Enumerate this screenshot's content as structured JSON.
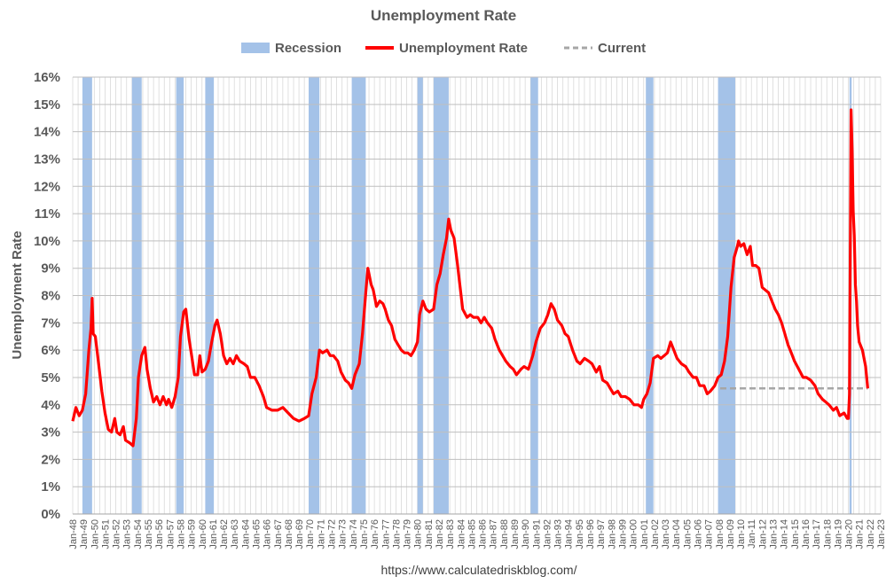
{
  "chart_data": {
    "type": "line",
    "title": "Unemployment Rate",
    "ylabel": "Unemployment Rate",
    "xlabel": "",
    "ylim": [
      0,
      16
    ],
    "xlim": [
      1948.0,
      2023.0
    ],
    "y_ticks": [
      "0%",
      "1%",
      "2%",
      "3%",
      "4%",
      "5%",
      "6%",
      "7%",
      "8%",
      "9%",
      "10%",
      "11%",
      "12%",
      "13%",
      "14%",
      "15%",
      "16%"
    ],
    "x_ticks": [
      "Jan-48",
      "Jan-49",
      "Jan-50",
      "Jan-51",
      "Jan-52",
      "Jan-53",
      "Jan-54",
      "Jan-55",
      "Jan-56",
      "Jan-57",
      "Jan-58",
      "Jan-59",
      "Jan-60",
      "Jan-61",
      "Jan-62",
      "Jan-63",
      "Jan-64",
      "Jan-65",
      "Jan-66",
      "Jan-67",
      "Jan-68",
      "Jan-69",
      "Jan-70",
      "Jan-71",
      "Jan-72",
      "Jan-73",
      "Jan-74",
      "Jan-75",
      "Jan-76",
      "Jan-77",
      "Jan-78",
      "Jan-79",
      "Jan-80",
      "Jan-81",
      "Jan-82",
      "Jan-83",
      "Jan-84",
      "Jan-85",
      "Jan-86",
      "Jan-87",
      "Jan-88",
      "Jan-89",
      "Jan-90",
      "Jan-91",
      "Jan-92",
      "Jan-93",
      "Jan-94",
      "Jan-95",
      "Jan-96",
      "Jan-97",
      "Jan-98",
      "Jan-99",
      "Jan-00",
      "Jan-01",
      "Jan-02",
      "Jan-03",
      "Jan-04",
      "Jan-05",
      "Jan-06",
      "Jan-07",
      "Jan-08",
      "Jan-09",
      "Jan-10",
      "Jan-11",
      "Jan-12",
      "Jan-13",
      "Jan-14",
      "Jan-15",
      "Jan-16",
      "Jan-17",
      "Jan-18",
      "Jan-19",
      "Jan-20",
      "Jan-21",
      "Jan-22",
      "Jan-23"
    ],
    "grid": true,
    "legend": {
      "placement": "top",
      "entries": [
        {
          "label": "Recession",
          "style": "bar",
          "color": "#a4c2e8"
        },
        {
          "label": "Unemployment Rate",
          "style": "line",
          "color": "#ff0000"
        },
        {
          "label": "Current",
          "style": "dashed",
          "color": "#a6a6a6"
        }
      ]
    },
    "recessions": [
      [
        1948.9,
        1949.8
      ],
      [
        1953.5,
        1954.4
      ],
      [
        1957.6,
        1958.3
      ],
      [
        1960.3,
        1961.1
      ],
      [
        1969.9,
        1970.9
      ],
      [
        1973.9,
        1975.2
      ],
      [
        1980.0,
        1980.5
      ],
      [
        1981.5,
        1982.9
      ],
      [
        1990.5,
        1991.2
      ],
      [
        2001.2,
        2001.9
      ],
      [
        2007.9,
        2009.5
      ],
      [
        2020.1,
        2020.3
      ]
    ],
    "current": {
      "value": 4.6,
      "from": 2008.1,
      "to": 2021.8
    },
    "series": [
      {
        "name": "Unemployment Rate",
        "color": "#ff0000",
        "points": [
          [
            1948.0,
            3.4
          ],
          [
            1948.3,
            3.9
          ],
          [
            1948.6,
            3.6
          ],
          [
            1948.9,
            3.8
          ],
          [
            1949.2,
            4.4
          ],
          [
            1949.5,
            6.0
          ],
          [
            1949.7,
            6.8
          ],
          [
            1949.8,
            7.9
          ],
          [
            1949.9,
            6.6
          ],
          [
            1950.1,
            6.5
          ],
          [
            1950.4,
            5.5
          ],
          [
            1950.7,
            4.5
          ],
          [
            1951.0,
            3.7
          ],
          [
            1951.3,
            3.1
          ],
          [
            1951.6,
            3.0
          ],
          [
            1951.9,
            3.5
          ],
          [
            1952.1,
            3.0
          ],
          [
            1952.4,
            2.9
          ],
          [
            1952.7,
            3.2
          ],
          [
            1952.9,
            2.7
          ],
          [
            1953.3,
            2.6
          ],
          [
            1953.6,
            2.5
          ],
          [
            1953.9,
            3.5
          ],
          [
            1954.1,
            5.0
          ],
          [
            1954.4,
            5.8
          ],
          [
            1954.7,
            6.1
          ],
          [
            1954.9,
            5.3
          ],
          [
            1955.2,
            4.6
          ],
          [
            1955.5,
            4.1
          ],
          [
            1955.8,
            4.3
          ],
          [
            1956.1,
            4.0
          ],
          [
            1956.4,
            4.3
          ],
          [
            1956.7,
            4.0
          ],
          [
            1956.9,
            4.2
          ],
          [
            1957.2,
            3.9
          ],
          [
            1957.5,
            4.3
          ],
          [
            1957.8,
            5.0
          ],
          [
            1958.0,
            6.5
          ],
          [
            1958.3,
            7.4
          ],
          [
            1958.5,
            7.5
          ],
          [
            1958.8,
            6.4
          ],
          [
            1959.0,
            5.9
          ],
          [
            1959.3,
            5.1
          ],
          [
            1959.6,
            5.1
          ],
          [
            1959.8,
            5.8
          ],
          [
            1960.0,
            5.2
          ],
          [
            1960.3,
            5.3
          ],
          [
            1960.6,
            5.6
          ],
          [
            1960.9,
            6.3
          ],
          [
            1961.2,
            6.9
          ],
          [
            1961.4,
            7.1
          ],
          [
            1961.7,
            6.6
          ],
          [
            1962.0,
            5.8
          ],
          [
            1962.3,
            5.5
          ],
          [
            1962.6,
            5.7
          ],
          [
            1962.9,
            5.5
          ],
          [
            1963.2,
            5.8
          ],
          [
            1963.5,
            5.6
          ],
          [
            1963.9,
            5.5
          ],
          [
            1964.2,
            5.4
          ],
          [
            1964.5,
            5.0
          ],
          [
            1964.9,
            5.0
          ],
          [
            1965.3,
            4.7
          ],
          [
            1965.7,
            4.3
          ],
          [
            1966.0,
            3.9
          ],
          [
            1966.5,
            3.8
          ],
          [
            1967.0,
            3.8
          ],
          [
            1967.5,
            3.9
          ],
          [
            1968.0,
            3.7
          ],
          [
            1968.5,
            3.5
          ],
          [
            1969.0,
            3.4
          ],
          [
            1969.5,
            3.5
          ],
          [
            1969.9,
            3.6
          ],
          [
            1970.2,
            4.4
          ],
          [
            1970.6,
            5.0
          ],
          [
            1970.9,
            6.0
          ],
          [
            1971.2,
            5.9
          ],
          [
            1971.6,
            6.0
          ],
          [
            1971.9,
            5.8
          ],
          [
            1972.2,
            5.8
          ],
          [
            1972.6,
            5.6
          ],
          [
            1972.9,
            5.2
          ],
          [
            1973.3,
            4.9
          ],
          [
            1973.6,
            4.8
          ],
          [
            1973.9,
            4.6
          ],
          [
            1974.2,
            5.1
          ],
          [
            1974.6,
            5.5
          ],
          [
            1974.9,
            6.6
          ],
          [
            1975.2,
            8.1
          ],
          [
            1975.4,
            9.0
          ],
          [
            1975.7,
            8.4
          ],
          [
            1975.9,
            8.2
          ],
          [
            1976.2,
            7.6
          ],
          [
            1976.5,
            7.8
          ],
          [
            1976.8,
            7.7
          ],
          [
            1977.0,
            7.5
          ],
          [
            1977.3,
            7.1
          ],
          [
            1977.6,
            6.9
          ],
          [
            1977.9,
            6.4
          ],
          [
            1978.2,
            6.2
          ],
          [
            1978.5,
            6.0
          ],
          [
            1978.8,
            5.9
          ],
          [
            1979.1,
            5.9
          ],
          [
            1979.4,
            5.8
          ],
          [
            1979.7,
            6.0
          ],
          [
            1980.0,
            6.3
          ],
          [
            1980.2,
            7.3
          ],
          [
            1980.5,
            7.8
          ],
          [
            1980.8,
            7.5
          ],
          [
            1981.1,
            7.4
          ],
          [
            1981.5,
            7.5
          ],
          [
            1981.8,
            8.4
          ],
          [
            1982.1,
            8.8
          ],
          [
            1982.4,
            9.5
          ],
          [
            1982.7,
            10.1
          ],
          [
            1982.9,
            10.8
          ],
          [
            1983.1,
            10.4
          ],
          [
            1983.4,
            10.1
          ],
          [
            1983.7,
            9.2
          ],
          [
            1983.9,
            8.5
          ],
          [
            1984.2,
            7.5
          ],
          [
            1984.6,
            7.2
          ],
          [
            1984.9,
            7.3
          ],
          [
            1985.2,
            7.2
          ],
          [
            1985.6,
            7.2
          ],
          [
            1985.9,
            7.0
          ],
          [
            1986.2,
            7.2
          ],
          [
            1986.5,
            7.0
          ],
          [
            1986.9,
            6.8
          ],
          [
            1987.2,
            6.4
          ],
          [
            1987.6,
            6.0
          ],
          [
            1987.9,
            5.8
          ],
          [
            1988.2,
            5.6
          ],
          [
            1988.6,
            5.4
          ],
          [
            1988.9,
            5.3
          ],
          [
            1989.2,
            5.1
          ],
          [
            1989.6,
            5.3
          ],
          [
            1989.9,
            5.4
          ],
          [
            1990.3,
            5.3
          ],
          [
            1990.7,
            5.8
          ],
          [
            1991.0,
            6.3
          ],
          [
            1991.4,
            6.8
          ],
          [
            1991.8,
            7.0
          ],
          [
            1992.1,
            7.3
          ],
          [
            1992.4,
            7.7
          ],
          [
            1992.7,
            7.5
          ],
          [
            1993.0,
            7.1
          ],
          [
            1993.4,
            6.9
          ],
          [
            1993.7,
            6.6
          ],
          [
            1994.0,
            6.5
          ],
          [
            1994.4,
            6.0
          ],
          [
            1994.8,
            5.6
          ],
          [
            1995.1,
            5.5
          ],
          [
            1995.5,
            5.7
          ],
          [
            1995.9,
            5.6
          ],
          [
            1996.2,
            5.5
          ],
          [
            1996.6,
            5.2
          ],
          [
            1996.9,
            5.4
          ],
          [
            1997.2,
            4.9
          ],
          [
            1997.6,
            4.8
          ],
          [
            1997.9,
            4.6
          ],
          [
            1998.2,
            4.4
          ],
          [
            1998.6,
            4.5
          ],
          [
            1998.9,
            4.3
          ],
          [
            1999.3,
            4.3
          ],
          [
            1999.7,
            4.2
          ],
          [
            2000.1,
            4.0
          ],
          [
            2000.5,
            4.0
          ],
          [
            2000.8,
            3.9
          ],
          [
            2001.0,
            4.2
          ],
          [
            2001.3,
            4.4
          ],
          [
            2001.6,
            4.8
          ],
          [
            2001.9,
            5.7
          ],
          [
            2002.3,
            5.8
          ],
          [
            2002.6,
            5.7
          ],
          [
            2002.9,
            5.8
          ],
          [
            2003.2,
            5.9
          ],
          [
            2003.5,
            6.3
          ],
          [
            2003.8,
            6.0
          ],
          [
            2004.1,
            5.7
          ],
          [
            2004.5,
            5.5
          ],
          [
            2004.9,
            5.4
          ],
          [
            2005.2,
            5.2
          ],
          [
            2005.6,
            5.0
          ],
          [
            2005.9,
            5.0
          ],
          [
            2006.2,
            4.7
          ],
          [
            2006.6,
            4.7
          ],
          [
            2006.9,
            4.4
          ],
          [
            2007.2,
            4.5
          ],
          [
            2007.6,
            4.7
          ],
          [
            2007.9,
            5.0
          ],
          [
            2008.2,
            5.1
          ],
          [
            2008.5,
            5.6
          ],
          [
            2008.8,
            6.5
          ],
          [
            2009.1,
            8.3
          ],
          [
            2009.4,
            9.4
          ],
          [
            2009.7,
            9.8
          ],
          [
            2009.8,
            10.0
          ],
          [
            2010.0,
            9.8
          ],
          [
            2010.3,
            9.9
          ],
          [
            2010.6,
            9.5
          ],
          [
            2010.9,
            9.8
          ],
          [
            2011.1,
            9.1
          ],
          [
            2011.4,
            9.1
          ],
          [
            2011.7,
            9.0
          ],
          [
            2012.0,
            8.3
          ],
          [
            2012.3,
            8.2
          ],
          [
            2012.6,
            8.1
          ],
          [
            2012.9,
            7.8
          ],
          [
            2013.2,
            7.5
          ],
          [
            2013.5,
            7.3
          ],
          [
            2013.8,
            7.0
          ],
          [
            2014.1,
            6.6
          ],
          [
            2014.4,
            6.2
          ],
          [
            2014.7,
            5.9
          ],
          [
            2015.0,
            5.6
          ],
          [
            2015.4,
            5.3
          ],
          [
            2015.8,
            5.0
          ],
          [
            2016.1,
            5.0
          ],
          [
            2016.5,
            4.9
          ],
          [
            2016.9,
            4.7
          ],
          [
            2017.2,
            4.4
          ],
          [
            2017.6,
            4.2
          ],
          [
            2017.9,
            4.1
          ],
          [
            2018.2,
            4.0
          ],
          [
            2018.6,
            3.8
          ],
          [
            2018.9,
            3.9
          ],
          [
            2019.2,
            3.6
          ],
          [
            2019.6,
            3.7
          ],
          [
            2019.9,
            3.5
          ],
          [
            2020.0,
            3.5
          ],
          [
            2020.1,
            4.4
          ],
          [
            2020.25,
            14.8
          ],
          [
            2020.35,
            13.3
          ],
          [
            2020.45,
            11.1
          ],
          [
            2020.55,
            10.2
          ],
          [
            2020.65,
            8.4
          ],
          [
            2020.75,
            7.8
          ],
          [
            2020.85,
            6.9
          ],
          [
            2021.0,
            6.3
          ],
          [
            2021.3,
            6.0
          ],
          [
            2021.6,
            5.4
          ],
          [
            2021.8,
            4.6
          ]
        ]
      }
    ]
  },
  "footer": "https://www.calculatedriskblog.com/"
}
